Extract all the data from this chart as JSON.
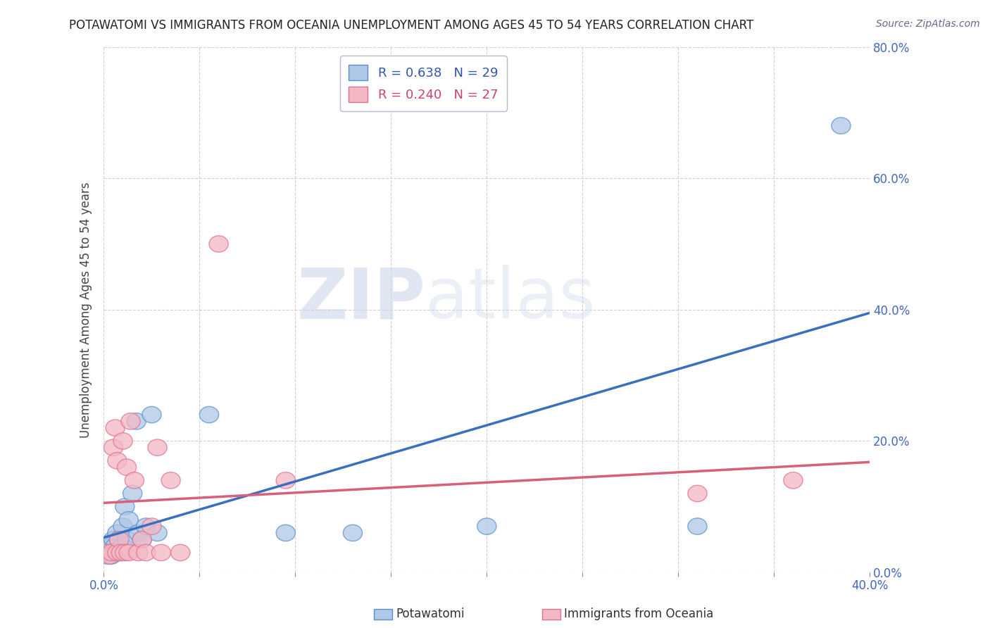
{
  "title": "POTAWATOMI VS IMMIGRANTS FROM OCEANIA UNEMPLOYMENT AMONG AGES 45 TO 54 YEARS CORRELATION CHART",
  "source": "Source: ZipAtlas.com",
  "ylabel": "Unemployment Among Ages 45 to 54 years",
  "x_min": 0.0,
  "x_max": 0.4,
  "y_min": 0.0,
  "y_max": 0.8,
  "x_ticks": [
    0.0,
    0.05,
    0.1,
    0.15,
    0.2,
    0.25,
    0.3,
    0.35,
    0.4
  ],
  "y_ticks": [
    0.0,
    0.2,
    0.4,
    0.6,
    0.8
  ],
  "x_tick_labels": [
    "0.0%",
    "",
    "",
    "",
    "",
    "",
    "",
    "",
    "40.0%"
  ],
  "y_tick_labels_right": [
    "0.0%",
    "20.0%",
    "40.0%",
    "60.0%",
    "80.0%"
  ],
  "potawatomi_R": 0.638,
  "potawatomi_N": 29,
  "oceania_R": 0.24,
  "oceania_N": 27,
  "potawatomi_color": "#aec8e8",
  "potawatomi_edge_color": "#5b8fc7",
  "oceania_color": "#f4b8c4",
  "oceania_edge_color": "#e07090",
  "potawatomi_line_color": "#3a6fbf",
  "oceania_line_color": "#d9607a",
  "watermark_zip": "ZIP",
  "watermark_atlas": "atlas",
  "potawatomi_x": [
    0.002,
    0.003,
    0.004,
    0.004,
    0.005,
    0.005,
    0.006,
    0.007,
    0.007,
    0.008,
    0.009,
    0.01,
    0.01,
    0.011,
    0.012,
    0.013,
    0.015,
    0.017,
    0.018,
    0.02,
    0.022,
    0.025,
    0.028,
    0.055,
    0.095,
    0.13,
    0.2,
    0.31,
    0.385
  ],
  "potawatomi_y": [
    0.025,
    0.03,
    0.025,
    0.04,
    0.03,
    0.05,
    0.04,
    0.03,
    0.06,
    0.05,
    0.03,
    0.04,
    0.07,
    0.1,
    0.05,
    0.08,
    0.12,
    0.23,
    0.06,
    0.05,
    0.07,
    0.24,
    0.06,
    0.24,
    0.06,
    0.06,
    0.07,
    0.07,
    0.68
  ],
  "oceania_x": [
    0.002,
    0.003,
    0.004,
    0.005,
    0.006,
    0.007,
    0.007,
    0.008,
    0.009,
    0.01,
    0.011,
    0.012,
    0.013,
    0.014,
    0.016,
    0.018,
    0.02,
    0.022,
    0.025,
    0.028,
    0.03,
    0.035,
    0.04,
    0.06,
    0.095,
    0.31,
    0.36
  ],
  "oceania_y": [
    0.03,
    0.025,
    0.03,
    0.19,
    0.22,
    0.03,
    0.17,
    0.05,
    0.03,
    0.2,
    0.03,
    0.16,
    0.03,
    0.23,
    0.14,
    0.03,
    0.05,
    0.03,
    0.07,
    0.19,
    0.03,
    0.14,
    0.03,
    0.5,
    0.14,
    0.12,
    0.14
  ],
  "background_color": "#ffffff",
  "grid_color": "#cccccc"
}
